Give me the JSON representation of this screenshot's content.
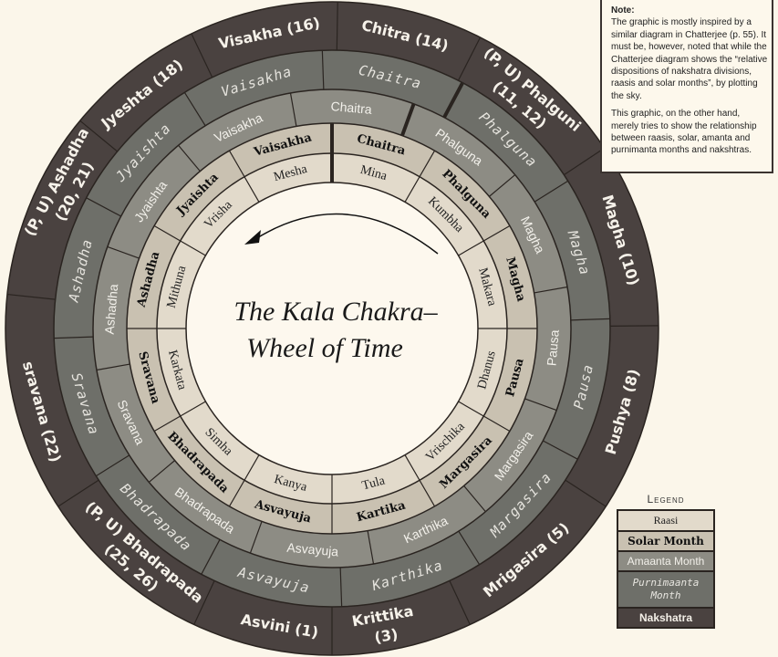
{
  "title": {
    "line1": "The Kala Chakra–",
    "line2": "Wheel of Time"
  },
  "colors": {
    "background": "#fbf6ea",
    "center": "#fdf8ee",
    "raasi": "#e2dacb",
    "solar": "#c9c1b1",
    "amanta": "#8d8c84",
    "purnimanta": "#6e6f69",
    "nakshatra": "#4a4240",
    "lines": "#2a2420"
  },
  "rings": {
    "raasi": [
      "Mina",
      "Kumbha",
      "Makara",
      "Dhanus",
      "Vrischika",
      "Tula",
      "Kanya",
      "Simha",
      "Karkata",
      "Mithuna",
      "Vrisha",
      "Mesha"
    ],
    "solar": [
      "Chaitra",
      "Phalguna",
      "Magha",
      "Pausa",
      "Margasira",
      "Kartika",
      "Asvayuja",
      "Bhadrapada",
      "Sravana",
      "Ashadha",
      "Jyaishta",
      "Vaisakha"
    ],
    "amanta": [
      "Chaitra",
      "Phalguna",
      "Magha",
      "Pausa",
      "Margasira",
      "Karthika",
      "Asvayuja",
      "Bhadrapada",
      "Sravana",
      "Ashadha",
      "Jyaishta",
      "Vaisakha"
    ],
    "purnimanta": [
      "Chaitra",
      "Phalguna",
      "Magha",
      "Pausa",
      "Margasira",
      "Karthika",
      "Asvayuja",
      "Bhadrapada",
      "Sravana",
      "Ashadha",
      "Jyaishta",
      "Vaisakha"
    ],
    "nakshatra": [
      [
        "Chitra (14)"
      ],
      [
        "(P, U) Phalguni",
        "(11, 12)"
      ],
      [
        "Magha (10)"
      ],
      [
        "Pushya (8)"
      ],
      [
        "Mrigasira (5)"
      ],
      [
        "Krittika",
        "(3)"
      ],
      [
        "Asvini (1)"
      ],
      [
        "(P, U) Bhadrapada",
        "(25, 26)"
      ],
      [
        "sravana (22)"
      ],
      [
        "(P, U) Ashadha",
        "(20, 21)"
      ],
      [
        "Jyeshta (18)"
      ],
      [
        "Visakha (16)"
      ]
    ]
  },
  "note": {
    "heading": "Note:",
    "p1": "The graphic is mostly inspired by a similar diagram in Chatterjee (p. 55). It must be, however, noted that while the Chatterjee diagram shows the “relative dispositions of nakshatra divisions, raasis and solar months”, by plotting the sky.",
    "p2": "This graphic, on the other hand, merely tries to show the relationship between raasis, solar, amanta and purnimanta months and nakshtras."
  },
  "legend": {
    "title": "Legend",
    "raasi": "Raasi",
    "solar": "Solar Month",
    "amanta": "Amaanta Month",
    "purnimanta": "Purnimaanta Month",
    "nakshatra": "Nakshatra"
  }
}
